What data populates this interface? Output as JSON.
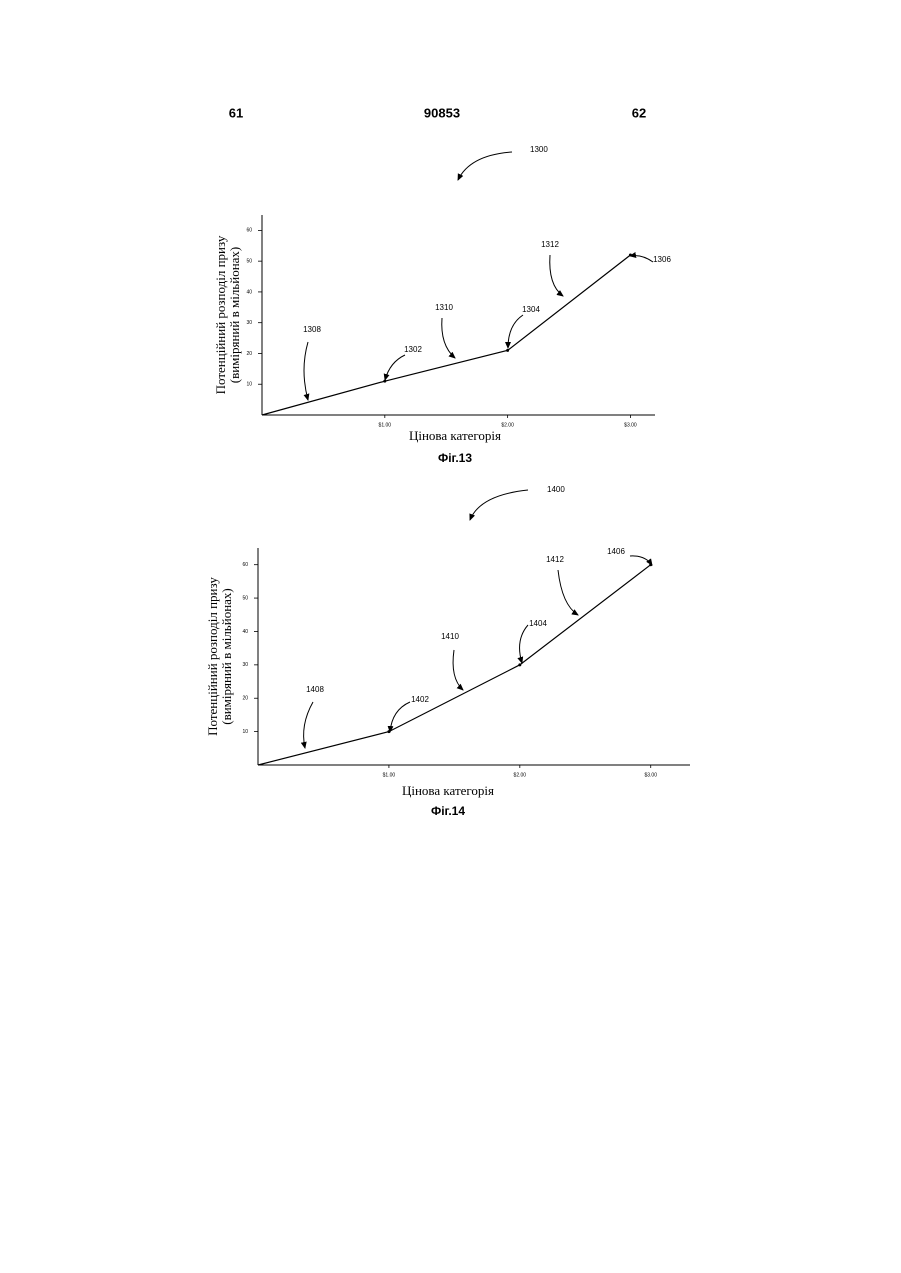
{
  "header": {
    "left": "61",
    "center": "90853",
    "right": "62"
  },
  "chart_data": [
    {
      "type": "line",
      "reference": "1300",
      "title": "Фіг.13",
      "xlabel": "Цінова категорія",
      "ylabel": [
        "Потенційний розподіл призу",
        "(виміряний в мільйонах)"
      ],
      "x": [
        0,
        1,
        2,
        3
      ],
      "values": [
        0,
        11,
        21,
        52
      ],
      "color": "#000000",
      "xlim": [
        0,
        3.2
      ],
      "ylim": [
        0,
        65
      ],
      "xticks": [
        {
          "value": 1,
          "label": "$1.00"
        },
        {
          "value": 2,
          "label": "$2.00"
        },
        {
          "value": 3,
          "label": "$3.00"
        }
      ],
      "yticks": [
        10,
        20,
        30,
        40,
        50,
        60
      ],
      "annotations": [
        "1308",
        "1302",
        "1310",
        "1304",
        "1312",
        "1306"
      ]
    },
    {
      "type": "line",
      "reference": "1400",
      "title": "Фіг.14",
      "xlabel": "Цінова категорія",
      "ylabel": [
        "Потенційний розподіл призу",
        "(виміряний в мільйонах)"
      ],
      "x": [
        0,
        1,
        2,
        3
      ],
      "values": [
        0,
        10,
        30,
        60
      ],
      "color": "#000000",
      "xlim": [
        0,
        3.3
      ],
      "ylim": [
        0,
        65
      ],
      "xticks": [
        {
          "value": 1,
          "label": "$1.00"
        },
        {
          "value": 2,
          "label": "$2.00"
        },
        {
          "value": 3,
          "label": "$3.00"
        }
      ],
      "yticks": [
        10,
        20,
        30,
        40,
        50,
        60
      ],
      "annotations": [
        "1408",
        "1402",
        "1410",
        "1404",
        "1412",
        "1406"
      ]
    }
  ]
}
